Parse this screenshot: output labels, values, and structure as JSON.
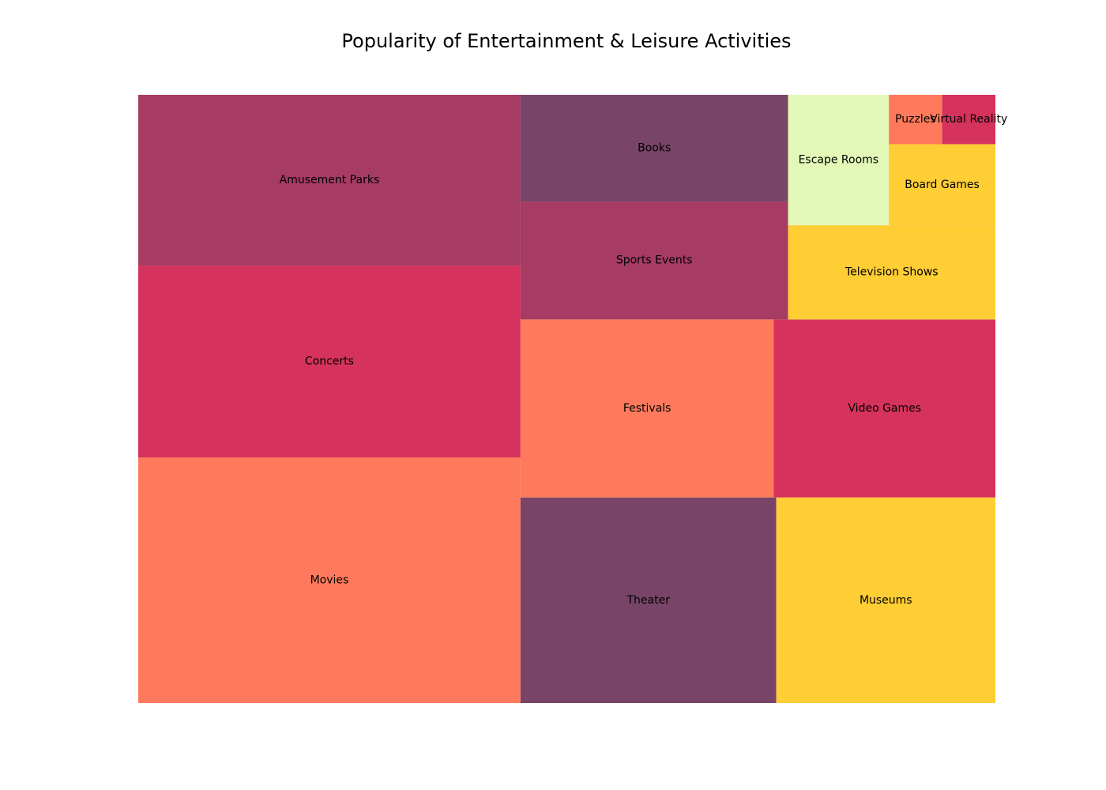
{
  "chart_data": {
    "type": "treemap",
    "title": "Popularity of Entertainment & Leisure Activities",
    "colors": {
      "coral": "#FF7A5C",
      "crimson": "#D5325E",
      "raspberry": "#A63B63",
      "plum": "#784568",
      "yellow": "#FFCD34",
      "pale_green": "#E3F8B7"
    },
    "items": [
      {
        "label": "Movies",
        "value": 25,
        "color": "#FF7A5C"
      },
      {
        "label": "Concerts",
        "value": 19.5,
        "color": "#D5325E"
      },
      {
        "label": "Amusement Parks",
        "value": 17.4,
        "color": "#A63B63"
      },
      {
        "label": "Theater",
        "value": 14,
        "color": "#784568"
      },
      {
        "label": "Museums",
        "value": 12,
        "color": "#FFCD34"
      },
      {
        "label": "Festivals",
        "value": 12,
        "color": "#FF7A5C"
      },
      {
        "label": "Video Games",
        "value": 10.5,
        "color": "#D5325E"
      },
      {
        "label": "Sports Events",
        "value": 8.4,
        "color": "#A63B63"
      },
      {
        "label": "Books",
        "value": 7.6,
        "color": "#784568"
      },
      {
        "label": "Television Shows",
        "value": 5.2,
        "color": "#FFCD34"
      },
      {
        "label": "Escape Rooms",
        "value": 3.5,
        "color": "#E3F8B7"
      },
      {
        "label": "Board Games",
        "value": 2.3,
        "color": "#FFCD34"
      },
      {
        "label": "Puzzles",
        "value": 0.7,
        "color": "#FF7A5C"
      },
      {
        "label": "Virtual Reality",
        "value": 0.7,
        "color": "#D5325E"
      }
    ]
  }
}
